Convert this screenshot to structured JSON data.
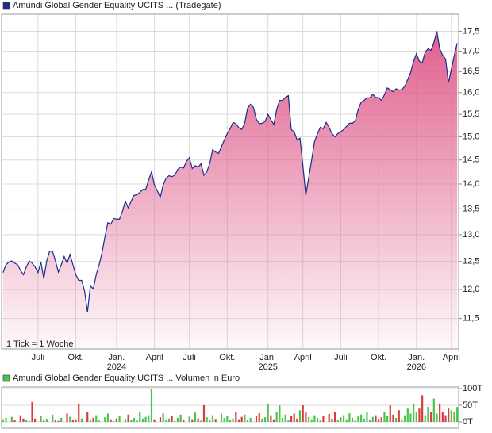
{
  "chart_data": [
    {
      "type": "area",
      "log_scale": true,
      "grid": true,
      "annotation": "1 Tick = 1 Woche",
      "categories": [
        null,
        null,
        null,
        null,
        null,
        null,
        null,
        null,
        null,
        null,
        null,
        null,
        "Juli",
        null,
        null,
        null,
        null,
        null,
        null,
        null,
        null,
        null,
        null,
        null,
        null,
        "Okt.",
        null,
        null,
        null,
        null,
        null,
        null,
        null,
        null,
        null,
        null,
        null,
        null,
        null,
        "Jan. 2024",
        null,
        null,
        null,
        null,
        null,
        null,
        null,
        null,
        null,
        null,
        null,
        null,
        "April",
        null,
        null,
        null,
        null,
        null,
        null,
        null,
        null,
        null,
        null,
        null,
        "Juli",
        null,
        null,
        null,
        null,
        null,
        null,
        null,
        null,
        null,
        null,
        null,
        null,
        "Okt.",
        null,
        null,
        null,
        null,
        null,
        null,
        null,
        null,
        null,
        null,
        null,
        null,
        null,
        "Jan. 2025",
        null,
        null,
        null,
        null,
        null,
        null,
        null,
        null,
        null,
        null,
        null,
        "April",
        null,
        null,
        null,
        null,
        null,
        null,
        null,
        null,
        null,
        null,
        null,
        null,
        "Juli",
        null,
        null,
        null,
        null,
        null,
        null,
        null,
        null,
        null,
        null,
        null,
        null,
        "Okt.",
        null,
        null,
        null,
        null,
        null,
        null,
        null,
        null,
        null,
        null,
        null,
        null,
        "Jan. 2026",
        null,
        null,
        null,
        null,
        null,
        null,
        null,
        null,
        null,
        null,
        null,
        "April",
        null,
        null
      ],
      "series": [
        {
          "name": "Amundi Global Gender Equality UCITS ... (Tradegate)",
          "color": "#1c2c8c",
          "fill": "#e0608e",
          "values": [
            12.3,
            12.44,
            12.49,
            12.51,
            12.47,
            12.44,
            12.34,
            12.26,
            12.4,
            12.51,
            12.47,
            12.4,
            12.3,
            12.49,
            12.19,
            12.51,
            12.69,
            12.69,
            12.51,
            12.31,
            12.44,
            12.59,
            12.47,
            12.63,
            12.44,
            12.26,
            12.16,
            12.16,
            11.97,
            11.61,
            12.06,
            12.01,
            12.26,
            12.44,
            12.66,
            12.96,
            13.23,
            13.2,
            13.31,
            13.3,
            13.3,
            13.45,
            13.65,
            13.52,
            13.65,
            13.77,
            13.78,
            13.83,
            13.89,
            13.89,
            14.08,
            14.25,
            13.98,
            13.86,
            13.73,
            13.98,
            14.12,
            14.17,
            14.15,
            14.18,
            14.3,
            14.35,
            14.33,
            14.47,
            14.55,
            14.32,
            14.38,
            14.35,
            14.42,
            14.18,
            14.25,
            14.43,
            14.72,
            14.67,
            14.64,
            14.78,
            14.93,
            15.07,
            15.18,
            15.32,
            15.29,
            15.2,
            15.16,
            15.3,
            15.64,
            15.73,
            15.66,
            15.39,
            15.29,
            15.3,
            15.34,
            15.5,
            15.38,
            15.27,
            15.61,
            15.82,
            15.82,
            15.89,
            15.93,
            15.16,
            15.11,
            14.93,
            14.97,
            14.38,
            13.77,
            14.13,
            14.5,
            14.9,
            15.07,
            15.21,
            15.18,
            15.32,
            15.21,
            15.07,
            15.0,
            15.07,
            15.11,
            15.16,
            15.23,
            15.3,
            15.3,
            15.36,
            15.61,
            15.78,
            15.82,
            15.88,
            15.88,
            15.96,
            15.89,
            15.88,
            15.82,
            15.95,
            16.11,
            16.07,
            16.02,
            16.09,
            16.06,
            16.07,
            16.15,
            16.31,
            16.48,
            16.75,
            16.94,
            16.75,
            16.71,
            16.98,
            17.06,
            17.02,
            17.22,
            17.5,
            17.06,
            16.9,
            16.81,
            16.24,
            16.56,
            16.9,
            17.2
          ]
        }
      ],
      "ylim": [
        11.0,
        17.9
      ],
      "yticks": [
        {
          "value": 11.5,
          "label": "11,5"
        },
        {
          "value": 12,
          "label": "12,0"
        },
        {
          "value": 12.5,
          "label": "12,5"
        },
        {
          "value": 13,
          "label": "13,0"
        },
        {
          "value": 13.5,
          "label": "13,5"
        },
        {
          "value": 14,
          "label": "14,0"
        },
        {
          "value": 14.5,
          "label": "14,5"
        },
        {
          "value": 15,
          "label": "15,0"
        },
        {
          "value": 15.5,
          "label": "15,5"
        },
        {
          "value": 16,
          "label": "16,0"
        },
        {
          "value": 16.5,
          "label": "16,5"
        },
        {
          "value": 17,
          "label": "17,0"
        },
        {
          "value": 17.5,
          "label": "17,5"
        }
      ]
    },
    {
      "type": "bar",
      "grid": true,
      "series": [
        {
          "name": "Amundi Global Gender Equality UCITS ... Volumen in Euro",
          "color": "#4cc44c",
          "down_color": "#d83c3c",
          "values": [
            8,
            12,
            0,
            15,
            5,
            0,
            20,
            10,
            6,
            3,
            60,
            10,
            0,
            18,
            4,
            9,
            0,
            22,
            7,
            3,
            12,
            0,
            25,
            15,
            5,
            8,
            55,
            10,
            0,
            30,
            6,
            12,
            20,
            4,
            0,
            14,
            25,
            8,
            3,
            10,
            18,
            0,
            9,
            22,
            6,
            12,
            4,
            30,
            10,
            15,
            20,
            100,
            8,
            0,
            14,
            26,
            6,
            10,
            18,
            3,
            12,
            22,
            5,
            0,
            16,
            8,
            28,
            10,
            4,
            50,
            14,
            6,
            20,
            9,
            0,
            25,
            12,
            18,
            5,
            10,
            30,
            8,
            15,
            22,
            6,
            12,
            0,
            18,
            26,
            10,
            14,
            55,
            20,
            8,
            30,
            50,
            12,
            22,
            6,
            18,
            25,
            10,
            35,
            50,
            28,
            15,
            8,
            20,
            12,
            5,
            18,
            0,
            24,
            10,
            30,
            6,
            14,
            20,
            8,
            26,
            12,
            4,
            18,
            22,
            10,
            28,
            6,
            15,
            20,
            9,
            14,
            30,
            18,
            50,
            22,
            12,
            35,
            8,
            20,
            40,
            25,
            55,
            30,
            40,
            80,
            20,
            45,
            30,
            70,
            25,
            55,
            30,
            20,
            40,
            35,
            30,
            45
          ]
        }
      ],
      "ylim": [
        0,
        100
      ],
      "yticks": [
        {
          "value": 0,
          "label": "0T"
        },
        {
          "value": 50,
          "label": "50T"
        },
        {
          "value": 100,
          "label": "100T"
        }
      ]
    }
  ]
}
